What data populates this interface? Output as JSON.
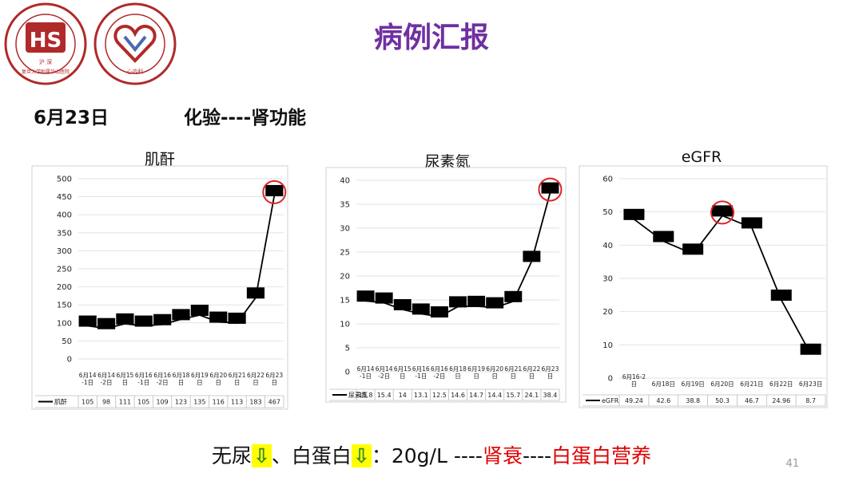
{
  "slide": {
    "title": "病例汇报",
    "date": "6月23日",
    "subtitle": "化验----肾功能",
    "page_number": "41"
  },
  "logos": {
    "left": {
      "text_line1": "沪 深",
      "bottom_text": "复旦大学附属华山医院",
      "ring_text": "HUASHAN HOSPITAL FUDAN UNIVERSITY",
      "color": "#b02a2a"
    },
    "right": {
      "text_line1": "心内科",
      "ring_text": "Cardiovascular Department of Huashan Hospital",
      "color": "#b02a2a",
      "accent": "#4a6ab0"
    }
  },
  "footer": {
    "p1": "无尿",
    "arrow": "⇩",
    "p2": "、白蛋白",
    "p3": "：20g/L ----",
    "p4": "肾衰",
    "p5": "----",
    "p6": "白蛋白营养"
  },
  "chart_data": [
    {
      "type": "line",
      "title": "肌酐",
      "series_name": "肌酐",
      "categories": [
        [
          "6月14",
          "-1日"
        ],
        [
          "6月14",
          "-2日"
        ],
        [
          "6月15",
          "日"
        ],
        [
          "6月16",
          "-1日"
        ],
        [
          "6月16",
          "-2日"
        ],
        [
          "6月18",
          "日"
        ],
        [
          "6月19",
          "日"
        ],
        [
          "6月20",
          "日"
        ],
        [
          "6月21",
          "日"
        ],
        [
          "6月22",
          "日"
        ],
        [
          "6月23",
          "日"
        ]
      ],
      "values": [
        105,
        98,
        111,
        105,
        109,
        123,
        135,
        116,
        113,
        183,
        467
      ],
      "table_values": [
        "105",
        "98",
        "111",
        "105",
        "109",
        "123",
        "135",
        "116",
        "113",
        "183",
        "467"
      ],
      "yticks": [
        "0",
        "50",
        "100",
        "150",
        "200",
        "250",
        "300",
        "350",
        "400",
        "450",
        "500"
      ],
      "ylim": [
        0,
        500
      ],
      "highlight_index": 10
    },
    {
      "type": "line",
      "title": "尿素氮",
      "series_name": "尿素氮",
      "categories": [
        [
          "6月14",
          "-1日"
        ],
        [
          "6月14",
          "-2日"
        ],
        [
          "6月15",
          "日"
        ],
        [
          "6月16",
          "-1日"
        ],
        [
          "6月16",
          "-2日"
        ],
        [
          "6月18",
          "日"
        ],
        [
          "6月19",
          "日"
        ],
        [
          "6月20",
          "日"
        ],
        [
          "6月21",
          "日"
        ],
        [
          "6月22",
          "日"
        ],
        [
          "6月23",
          "日"
        ]
      ],
      "values": [
        15.8,
        15.4,
        14,
        13.1,
        12.5,
        14.6,
        14.7,
        14.4,
        15.7,
        24.1,
        38.4
      ],
      "table_values": [
        "15.8",
        "15.4",
        "14",
        "13.1",
        "12.5",
        "14.6",
        "14.7",
        "14.4",
        "15.7",
        "24.1",
        "38.4"
      ],
      "yticks": [
        "0",
        "5",
        "10",
        "15",
        "20",
        "25",
        "30",
        "35",
        "40"
      ],
      "ylim": [
        0,
        40
      ],
      "highlight_index": 10
    },
    {
      "type": "line",
      "title": "eGFR",
      "series_name": "eGFR",
      "categories": [
        [
          "6月16-2",
          "日"
        ],
        [
          "6月18日"
        ],
        [
          "6月19日"
        ],
        [
          "6月20日"
        ],
        [
          "6月21日"
        ],
        [
          "6月22日"
        ],
        [
          "6月23日"
        ]
      ],
      "values": [
        49.24,
        42.6,
        38.8,
        50.3,
        46.7,
        24.96,
        8.7
      ],
      "table_values": [
        "49.24",
        "42.6",
        "38.8",
        "50.3",
        "46.7",
        "24.96",
        "8.7"
      ],
      "yticks": [
        "0",
        "10",
        "20",
        "30",
        "40",
        "50",
        "60"
      ],
      "ylim": [
        0,
        60
      ],
      "highlight_index": 3
    }
  ]
}
